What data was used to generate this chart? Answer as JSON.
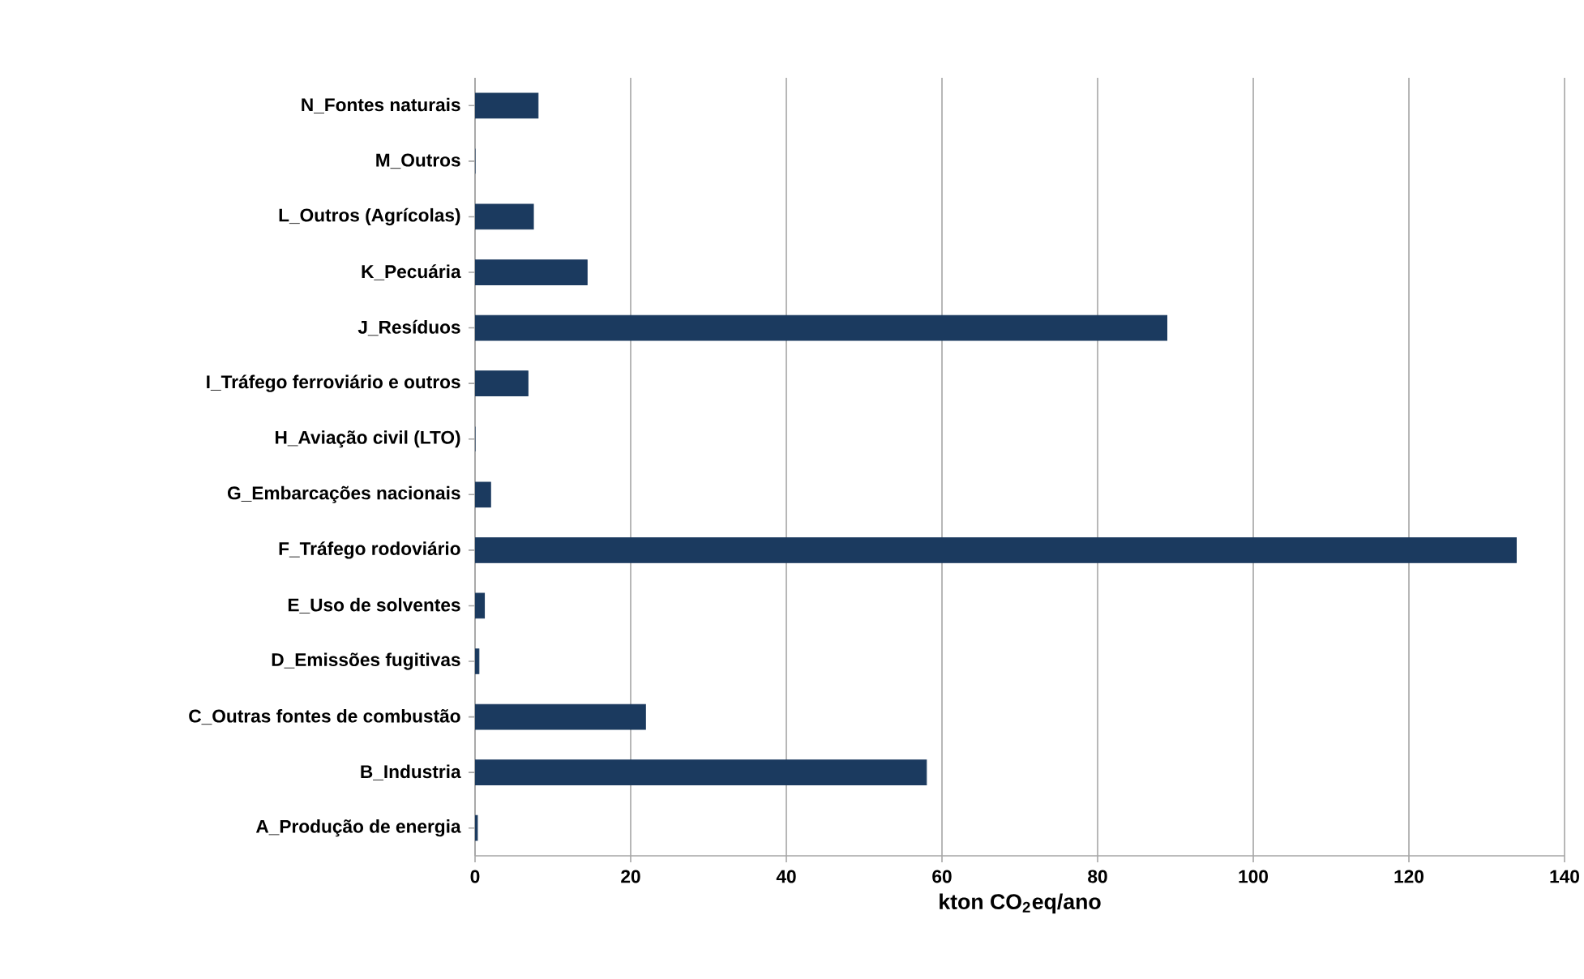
{
  "chart_data": {
    "type": "bar",
    "orientation": "horizontal",
    "xlabel": "kton CO$_{2}$eq/ano",
    "categories": [
      "N_Fontes naturais",
      "M_Outros",
      "L_Outros (Agrícolas)",
      "K_Pecuária",
      "J_Resíduos",
      "I_Tráfego ferroviário e outros",
      "H_Aviação civil (LTO)",
      "G_Embarcações nacionais",
      "F_Tráfego rodoviário",
      "E_Uso de solventes",
      "D_Emissões fugitivas",
      "C_Outras fontes de combustão",
      "B_Industria",
      "A_Produção de energia"
    ],
    "values": [
      8.1,
      0,
      7.5,
      14.4,
      88.9,
      6.8,
      0,
      2.0,
      133.8,
      1.2,
      0.5,
      21.9,
      58.0,
      0.3
    ],
    "color": "#1b3a5f",
    "xlim": [
      0,
      140
    ],
    "xticks": [
      0,
      20,
      40,
      60,
      80,
      100,
      120,
      140
    ],
    "grid": "x"
  }
}
